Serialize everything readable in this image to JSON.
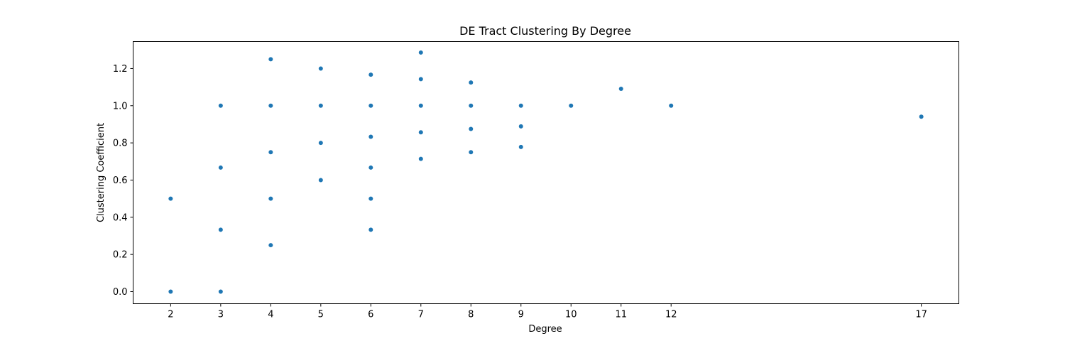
{
  "chart_data": {
    "type": "scatter",
    "title": "DE Tract Clustering By Degree",
    "xlabel": "Degree",
    "ylabel": "Clustering Coefficient",
    "xlim": [
      1.25,
      17.75
    ],
    "ylim": [
      -0.065,
      1.345
    ],
    "x_ticks": [
      2,
      3,
      4,
      5,
      6,
      7,
      8,
      9,
      10,
      11,
      12,
      17
    ],
    "y_ticks": [
      0.0,
      0.2,
      0.4,
      0.6,
      0.8,
      1.0,
      1.2
    ],
    "y_tick_labels": [
      "0.0",
      "0.2",
      "0.4",
      "0.6",
      "0.8",
      "1.0",
      "1.2"
    ],
    "marker_color": "#1f77b4",
    "grid": false,
    "points": [
      [
        2,
        0.0
      ],
      [
        2,
        0.5
      ],
      [
        3,
        0.0
      ],
      [
        3,
        0.333
      ],
      [
        3,
        0.667
      ],
      [
        3,
        1.0
      ],
      [
        4,
        0.25
      ],
      [
        4,
        0.5
      ],
      [
        4,
        0.75
      ],
      [
        4,
        1.0
      ],
      [
        4,
        1.25
      ],
      [
        5,
        0.6
      ],
      [
        5,
        0.8
      ],
      [
        5,
        1.0
      ],
      [
        5,
        1.2
      ],
      [
        6,
        0.333
      ],
      [
        6,
        0.5
      ],
      [
        6,
        0.667
      ],
      [
        6,
        0.833
      ],
      [
        6,
        1.0
      ],
      [
        6,
        1.167
      ],
      [
        7,
        0.714
      ],
      [
        7,
        0.857
      ],
      [
        7,
        1.0
      ],
      [
        7,
        1.143
      ],
      [
        7,
        1.286
      ],
      [
        8,
        0.75
      ],
      [
        8,
        0.875
      ],
      [
        8,
        1.0
      ],
      [
        8,
        1.125
      ],
      [
        9,
        0.778
      ],
      [
        9,
        0.889
      ],
      [
        9,
        1.0
      ],
      [
        10,
        1.0
      ],
      [
        11,
        1.091
      ],
      [
        12,
        1.0
      ],
      [
        17,
        0.941
      ]
    ]
  }
}
